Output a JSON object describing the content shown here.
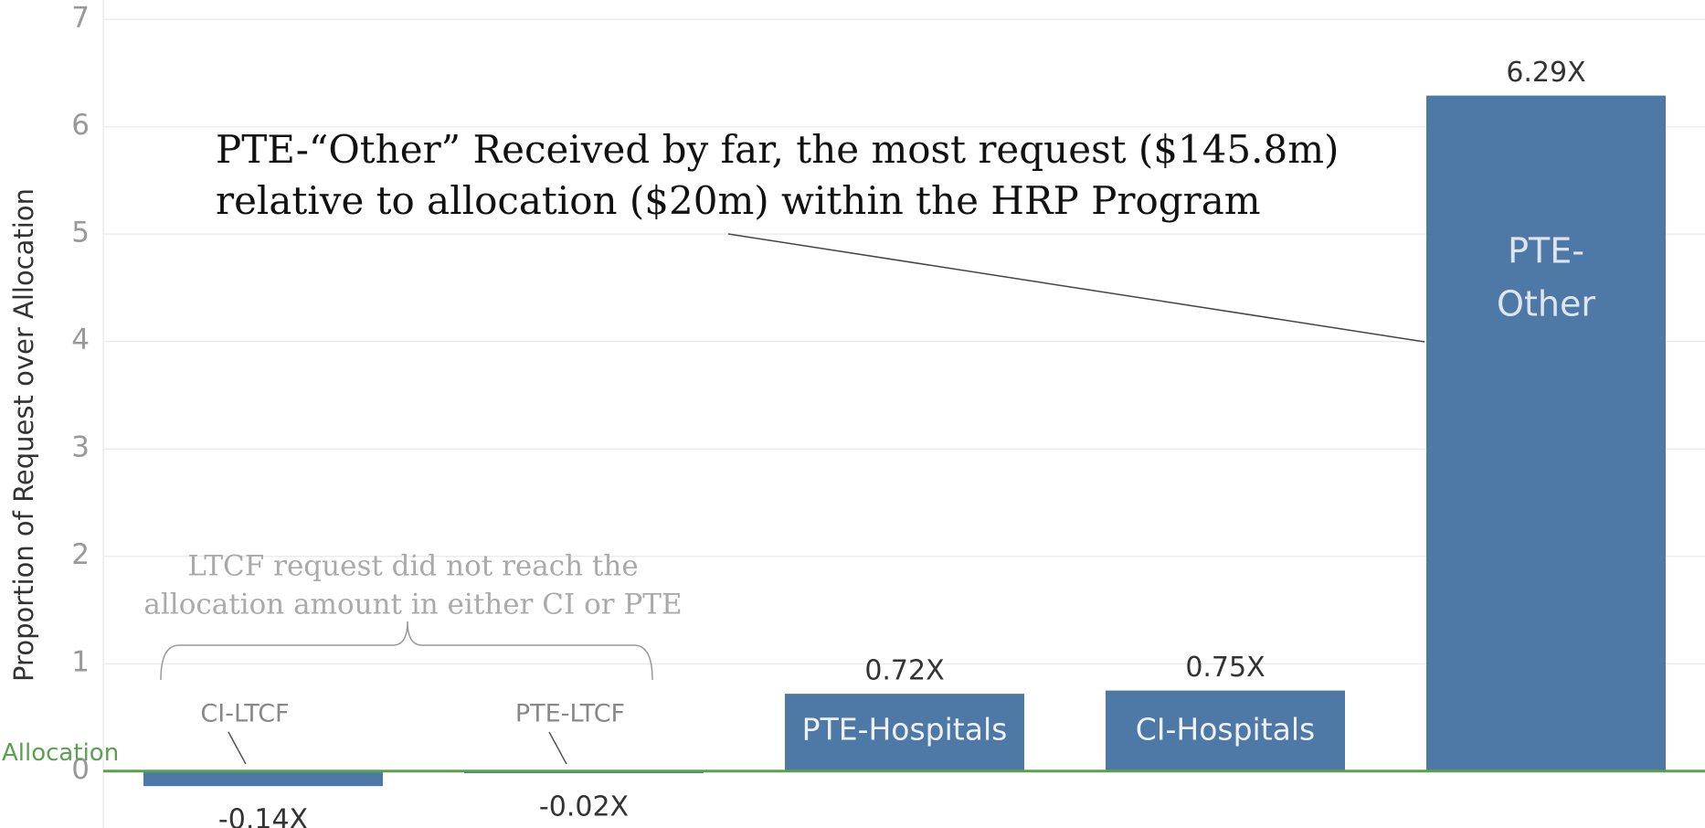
{
  "chart_data": {
    "type": "bar",
    "categories": [
      "CI-LTCF",
      "PTE-LTCF",
      "PTE-Hospitals",
      "CI-Hospitals",
      "PTE-Other"
    ],
    "values": [
      -0.14,
      -0.02,
      0.72,
      0.75,
      6.29
    ],
    "value_labels": [
      "-0.14X",
      "-0.02X",
      "0.72X",
      "0.75X",
      "6.29X"
    ],
    "color": "#4e79a7",
    "ylabel": "Proportion of Request over Allocation",
    "ylim": [
      -0.53,
      7.18
    ],
    "yticks": [
      0,
      1,
      2,
      3,
      4,
      5,
      6,
      7
    ],
    "grid": true,
    "reference_line": {
      "value": 0,
      "label": "Allocation",
      "color": "#59a14f"
    },
    "annotations": [
      {
        "lines": [
          "PTE-“Other” Received by far, the most request ($145.8m)",
          "relative to allocation ($20m) within the HRP Program"
        ]
      },
      {
        "lines": [
          "LTCF request did not reach the",
          "allocation amount in either CI or PTE"
        ]
      }
    ]
  }
}
